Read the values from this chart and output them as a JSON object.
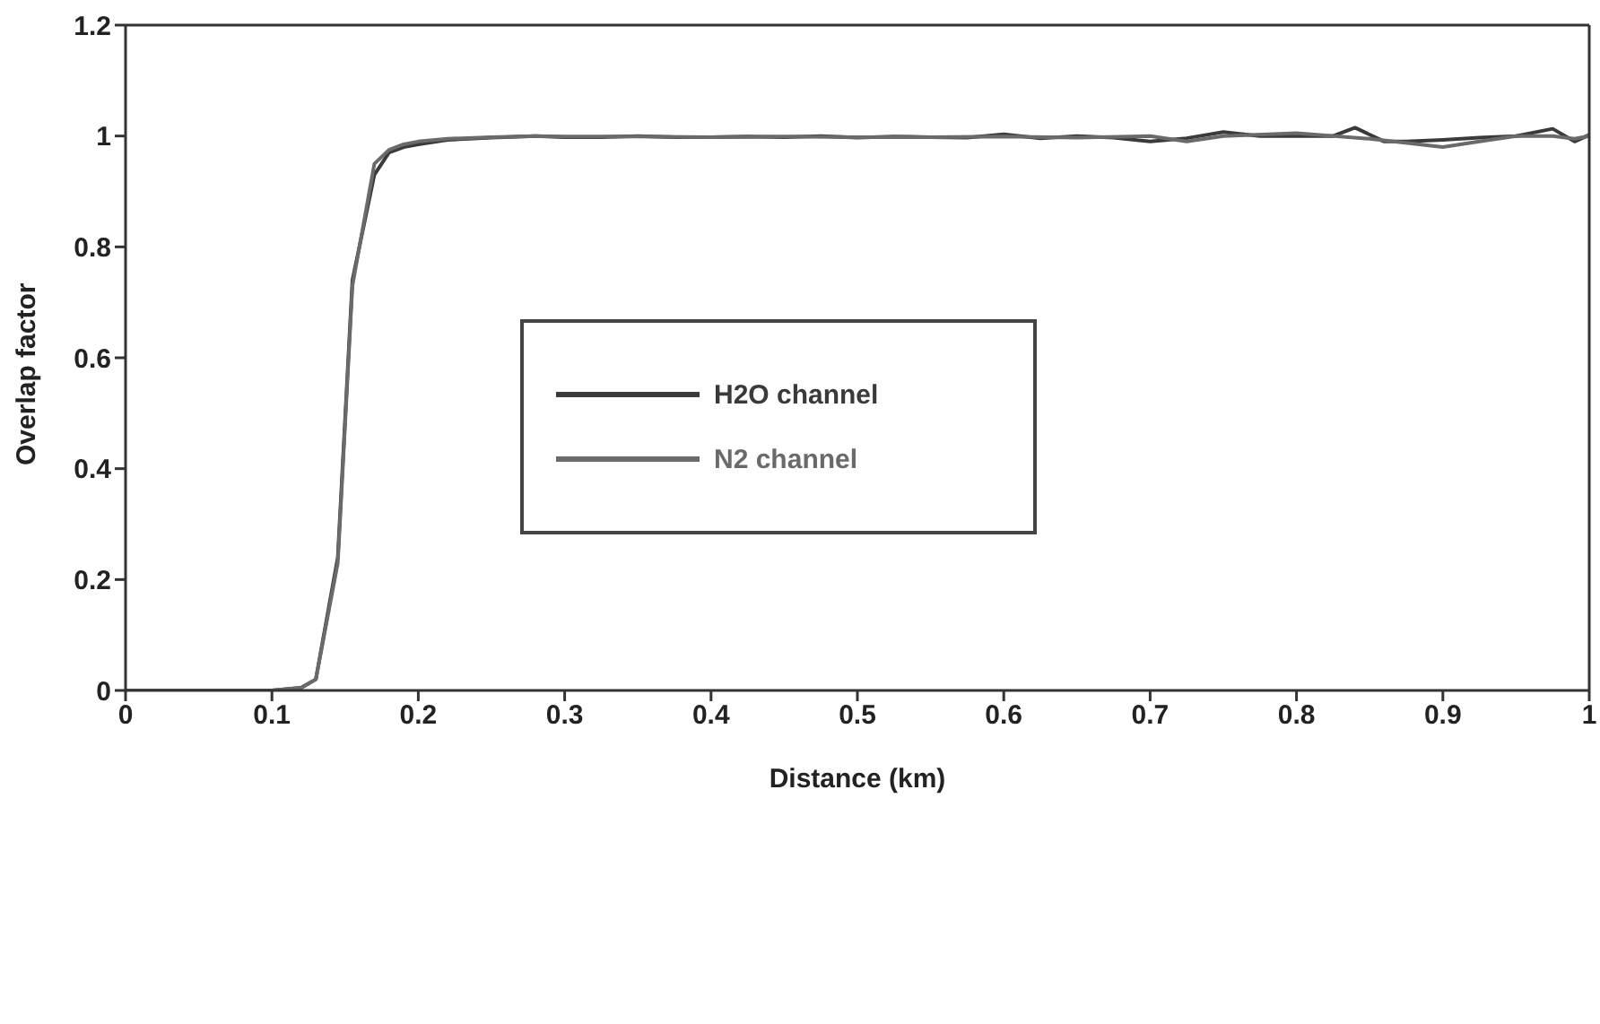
{
  "chart_data": {
    "type": "line",
    "xlabel": "Distance (km)",
    "ylabel": "Overlap factor",
    "xlim": [
      0,
      1
    ],
    "xticks": [
      0,
      0.1,
      0.2,
      0.3,
      0.4,
      0.5,
      0.6,
      0.7,
      0.8,
      0.9,
      1
    ],
    "ylim": [
      0,
      1.2
    ],
    "yticks": [
      0,
      0.2,
      0.4,
      0.6,
      0.8,
      1,
      1.2
    ],
    "legend": "center",
    "marker": "none",
    "line_style": "solid",
    "series": [
      {
        "name": "H2O channel",
        "color": "#3a3a3a",
        "x": [
          0,
          0.05,
          0.1,
          0.12,
          0.13,
          0.145,
          0.155,
          0.17,
          0.18,
          0.19,
          0.2,
          0.22,
          0.25,
          0.28,
          0.3,
          0.325,
          0.35,
          0.375,
          0.4,
          0.425,
          0.45,
          0.475,
          0.5,
          0.525,
          0.55,
          0.575,
          0.6,
          0.625,
          0.65,
          0.675,
          0.7,
          0.725,
          0.75,
          0.775,
          0.8,
          0.825,
          0.84,
          0.86,
          0.875,
          0.9,
          0.925,
          0.95,
          0.975,
          0.99,
          1
        ],
        "values": [
          0,
          0,
          0,
          0.005,
          0.02,
          0.24,
          0.74,
          0.93,
          0.97,
          0.98,
          0.985,
          0.993,
          0.997,
          1,
          0.998,
          0.998,
          1,
          0.998,
          0.998,
          0.999,
          0.998,
          1,
          0.997,
          0.999,
          0.998,
          0.997,
          1.003,
          0.996,
          1,
          0.997,
          0.99,
          0.996,
          1.007,
          1,
          1,
          1,
          1.015,
          0.99,
          0.99,
          0.993,
          0.997,
          1,
          1.013,
          0.99,
          1.002
        ]
      },
      {
        "name": "N2 channel",
        "color": "#6a6a6a",
        "x": [
          0,
          0.05,
          0.1,
          0.12,
          0.13,
          0.145,
          0.155,
          0.17,
          0.18,
          0.19,
          0.2,
          0.22,
          0.25,
          0.28,
          0.3,
          0.35,
          0.4,
          0.45,
          0.5,
          0.55,
          0.6,
          0.65,
          0.7,
          0.725,
          0.75,
          0.8,
          0.85,
          0.9,
          0.925,
          0.95,
          0.975,
          0.99,
          1
        ],
        "values": [
          0,
          0,
          0,
          0.005,
          0.02,
          0.23,
          0.73,
          0.95,
          0.975,
          0.985,
          0.99,
          0.995,
          0.998,
          1,
          0.999,
          0.999,
          0.998,
          0.999,
          0.998,
          0.998,
          0.999,
          0.997,
          1,
          0.99,
          1,
          1.005,
          0.995,
          0.98,
          0.99,
          1,
          1,
          0.995,
          1
        ]
      }
    ]
  }
}
